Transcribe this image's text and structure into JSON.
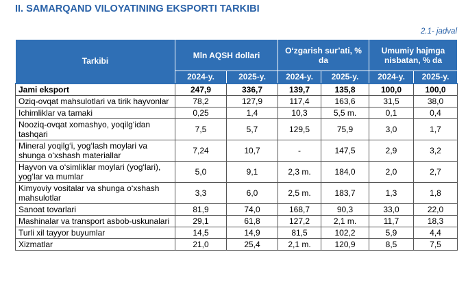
{
  "header": {
    "title": "II. SAMARQAND VILOYATINING EKSPORTI TARKIBI",
    "note": "2.1- jadval"
  },
  "table": {
    "label_header": "Tarkibi",
    "groups": [
      "Mln AQSH dollari",
      "O‘zgarish sur’ati, % da",
      "Umumiy hajmga nisbatan, % da"
    ],
    "years": [
      "2024-y.",
      "2025-y.",
      "2024-y.",
      "2025-y.",
      "2024-y.",
      "2025-y."
    ],
    "rows": [
      [
        "Jami eksport",
        "247,9",
        "336,7",
        "139,7",
        "135,8",
        "100,0",
        "100,0"
      ],
      [
        "Oziq-ovqat mahsulotlari va tirik hayvonlar",
        "78,2",
        "127,9",
        "117,4",
        "163,6",
        "31,5",
        "38,0"
      ],
      [
        "Ichimliklar va tamaki",
        "0,25",
        "1,4",
        "10,3",
        "5,5 m.",
        "0,1",
        "0,4"
      ],
      [
        "Nooziq-ovqat xomashyo, yoqilg‘idan tashqari",
        "7,5",
        "5,7",
        "129,5",
        "75,9",
        "3,0",
        "1,7"
      ],
      [
        "Mineral yoqilg‘i, yog‘lash moylari va shunga o‘xshash materiallar",
        "7,24",
        "10,7",
        "-",
        "147,5",
        "2,9",
        "3,2"
      ],
      [
        "Hayvon va o‘simliklar moylari (yog‘lari), yog‘lar va mumlar",
        "5,0",
        "9,1",
        "2,3 m.",
        "184,0",
        "2,0",
        "2,7"
      ],
      [
        "Kimyoviy vositalar va shunga o‘xshash mahsulotlar",
        "3,3",
        "6,0",
        "2,5 m.",
        "183,7",
        "1,3",
        "1,8"
      ],
      [
        "Sanoat tovarlari",
        "81,9",
        "74,0",
        "168,7",
        "90,3",
        "33,0",
        "22,0"
      ],
      [
        "Mashinalar va transport asbob-uskunalari",
        "29,1",
        "61,8",
        "127,2",
        "2,1 m.",
        "11,7",
        "18,3"
      ],
      [
        "Turli xil tayyor buyumlar",
        "14,5",
        "14,9",
        "81,5",
        "102,2",
        "5,9",
        "4,4"
      ],
      [
        "Xizmatlar",
        "21,0",
        "25,4",
        "2,1 m.",
        "120,9",
        "8,5",
        "7,5"
      ]
    ]
  }
}
